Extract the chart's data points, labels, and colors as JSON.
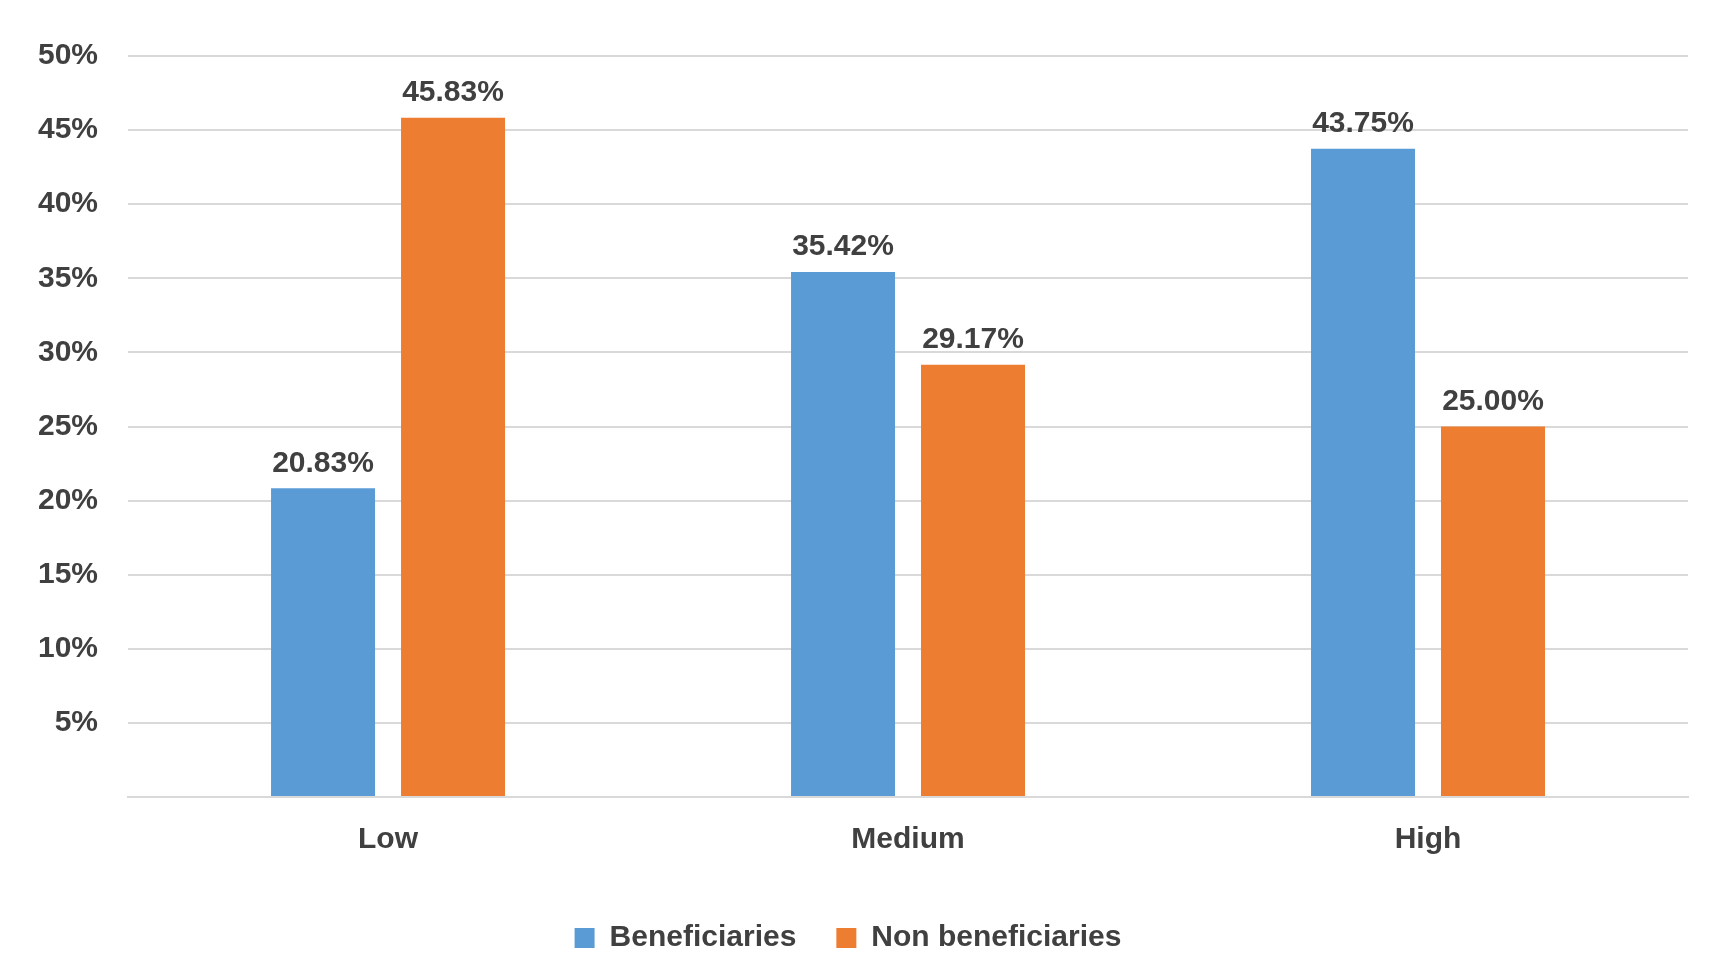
{
  "chart_data": {
    "type": "bar",
    "categories": [
      "Low",
      "Medium",
      "High"
    ],
    "series": [
      {
        "name": "Beneficiaries",
        "color": "#5b9bd5",
        "values": [
          20.83,
          35.42,
          43.75
        ],
        "value_labels": [
          "20.83%",
          "35.42%",
          "43.75%"
        ]
      },
      {
        "name": "Non beneficiaries",
        "color": "#ed7d31",
        "values": [
          45.83,
          29.17,
          25.0
        ],
        "value_labels": [
          "45.83%",
          "29.17%",
          "25.00%"
        ]
      }
    ],
    "ylim": [
      0,
      50
    ],
    "yticks": [
      {
        "value": 0,
        "label": null
      },
      {
        "value": 5,
        "label": "5%"
      },
      {
        "value": 10,
        "label": "10%"
      },
      {
        "value": 15,
        "label": "15%"
      },
      {
        "value": 20,
        "label": "20%"
      },
      {
        "value": 25,
        "label": "25%"
      },
      {
        "value": 30,
        "label": "30%"
      },
      {
        "value": 35,
        "label": "35%"
      },
      {
        "value": 40,
        "label": "40%"
      },
      {
        "value": 45,
        "label": "45%"
      },
      {
        "value": 50,
        "label": "50%"
      }
    ],
    "grid": "y",
    "legend": "bottom"
  }
}
